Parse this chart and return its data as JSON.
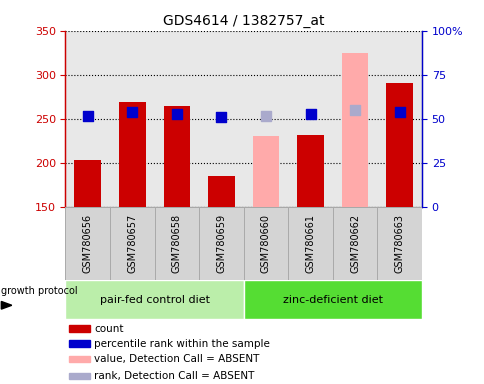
{
  "title": "GDS4614 / 1382757_at",
  "samples": [
    "GSM780656",
    "GSM780657",
    "GSM780658",
    "GSM780659",
    "GSM780660",
    "GSM780661",
    "GSM780662",
    "GSM780663"
  ],
  "bar_values": [
    204,
    269,
    265,
    186,
    null,
    232,
    null,
    291
  ],
  "bar_absent_values": [
    null,
    null,
    null,
    null,
    231,
    null,
    325,
    null
  ],
  "bar_color_present": "#cc0000",
  "bar_color_absent": "#ffaaaa",
  "rank_present": [
    52,
    54,
    53,
    51,
    null,
    53,
    null,
    54
  ],
  "rank_absent": [
    null,
    null,
    null,
    null,
    52,
    null,
    55,
    null
  ],
  "rank_color_present": "#0000cc",
  "rank_color_absent": "#aaaacc",
  "ylim_left": [
    150,
    350
  ],
  "ylim_right": [
    0,
    100
  ],
  "yticks_left": [
    150,
    200,
    250,
    300,
    350
  ],
  "yticks_right": [
    0,
    25,
    50,
    75,
    100
  ],
  "ytick_labels_right": [
    "0",
    "25",
    "50",
    "75",
    "100%"
  ],
  "group1_label": "pair-fed control diet",
  "group2_label": "zinc-deficient diet",
  "group1_color": "#bbeeaa",
  "group2_color": "#55dd33",
  "protocol_label": "growth protocol",
  "legend_items": [
    "count",
    "percentile rank within the sample",
    "value, Detection Call = ABSENT",
    "rank, Detection Call = ABSENT"
  ],
  "legend_colors": [
    "#cc0000",
    "#0000cc",
    "#ffaaaa",
    "#aaaacc"
  ],
  "bar_width": 0.6,
  "rank_marker_size": 55,
  "box_bg": "#d4d4d4",
  "box_border": "#aaaaaa"
}
